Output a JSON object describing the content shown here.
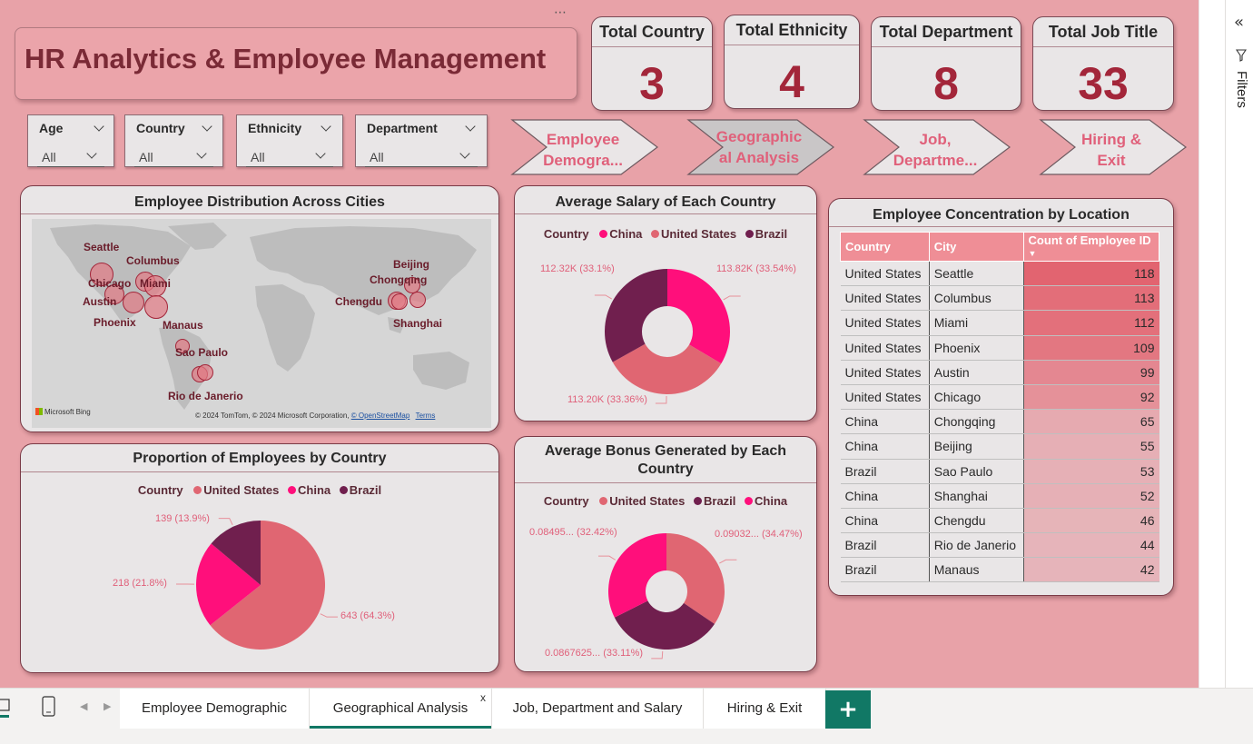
{
  "title": "HR Analytics & Employee Management",
  "more_options": "⋯",
  "kpis": [
    {
      "label": "Total Country",
      "value": "3"
    },
    {
      "label": "Total Ethnicity",
      "value": "4"
    },
    {
      "label": "Total Department",
      "value": "8"
    },
    {
      "label": "Total Job Title",
      "value": "33"
    }
  ],
  "slicers": [
    {
      "label": "Age",
      "value": "All"
    },
    {
      "label": "Country",
      "value": "All"
    },
    {
      "label": "Ethnicity",
      "value": "All"
    },
    {
      "label": "Department",
      "value": "All"
    }
  ],
  "nav_buttons": [
    {
      "line1": "Employee",
      "line2": "Demogra..."
    },
    {
      "line1": "Geographic",
      "line2": "al Analysis"
    },
    {
      "line1": "Job,",
      "line2": "Departme..."
    },
    {
      "line1": "Hiring &",
      "line2": "Exit"
    }
  ],
  "map": {
    "title": "Employee Distribution Across Cities",
    "cities": [
      "Seattle",
      "Columbus",
      "Chicago",
      "Miami",
      "Austin",
      "Phoenix",
      "Manaus",
      "Sao Paulo",
      "Rio de Janerio",
      "Beijing",
      "Chongqing",
      "Chengdu",
      "Shanghai"
    ],
    "provider": "Microsoft Bing",
    "attribution": "© 2024 TomTom, © 2024 Microsoft Corporation,",
    "osm": "© OpenStreetMap",
    "terms": "Terms"
  },
  "salary_chart": {
    "title": "Average Salary of Each Country",
    "legend_title": "Country",
    "labels": [
      "113.82K (33.54%)",
      "113.20K (33.36%)",
      "112.32K (33.1%)"
    ]
  },
  "bonus_chart": {
    "title": "Average Bonus Generated by Each Country",
    "legend_title": "Country",
    "labels": [
      "0.09032... (34.47%)",
      "0.0867625... (33.11%)",
      "0.08495... (32.42%)"
    ]
  },
  "proportion_chart": {
    "title": "Proportion of Employees by Country",
    "legend_title": "Country",
    "labels": [
      "643 (64.3%)",
      "218 (21.8%)",
      "139 (13.9%)"
    ]
  },
  "table": {
    "title": "Employee Concentration by Location",
    "headers": [
      "Country",
      "City",
      "Count of Employee ID"
    ],
    "sort_indicator": "▼"
  },
  "chart_data": [
    {
      "type": "pie",
      "title": "Average Salary of Each Country",
      "legend_title": "Country",
      "donut": true,
      "categories": [
        "China",
        "United States",
        "Brazil"
      ],
      "values": [
        113.82,
        113.2,
        112.32
      ],
      "value_unit": "K",
      "percents": [
        33.54,
        33.36,
        33.1
      ],
      "colors": [
        "#ff0f7b",
        "#e06672",
        "#701f4e"
      ]
    },
    {
      "type": "pie",
      "title": "Average Bonus Generated by Each Country",
      "legend_title": "Country",
      "donut": true,
      "categories": [
        "United States",
        "Brazil",
        "China"
      ],
      "values": [
        0.09032,
        0.0867625,
        0.08495
      ],
      "percents": [
        34.47,
        33.11,
        32.42
      ],
      "colors": [
        "#e06672",
        "#701f4e",
        "#ff0f7b"
      ]
    },
    {
      "type": "pie",
      "title": "Proportion of Employees by Country",
      "legend_title": "Country",
      "donut": false,
      "categories": [
        "United States",
        "China",
        "Brazil"
      ],
      "values": [
        643,
        218,
        139
      ],
      "percents": [
        64.3,
        21.8,
        13.9
      ],
      "colors": [
        "#e06672",
        "#ff0f7b",
        "#701f4e"
      ]
    },
    {
      "type": "table",
      "title": "Employee Concentration by Location",
      "columns": [
        "Country",
        "City",
        "Count of Employee ID"
      ],
      "rows": [
        [
          "United States",
          "Seattle",
          118
        ],
        [
          "United States",
          "Columbus",
          113
        ],
        [
          "United States",
          "Miami",
          112
        ],
        [
          "United States",
          "Phoenix",
          109
        ],
        [
          "United States",
          "Austin",
          99
        ],
        [
          "United States",
          "Chicago",
          92
        ],
        [
          "China",
          "Chongqing",
          65
        ],
        [
          "China",
          "Beijing",
          55
        ],
        [
          "Brazil",
          "Sao Paulo",
          53
        ],
        [
          "China",
          "Shanghai",
          52
        ],
        [
          "China",
          "Chengdu",
          46
        ],
        [
          "Brazil",
          "Rio de Janerio",
          44
        ],
        [
          "Brazil",
          "Manaus",
          42
        ]
      ]
    }
  ],
  "filters_pane": {
    "label": "Filters",
    "collapse_icon": "«"
  },
  "page_tabs": [
    {
      "label": "Employee Demographic"
    },
    {
      "label": "Geographical Analysis"
    },
    {
      "label": "Job, Department and Salary"
    },
    {
      "label": "Hiring & Exit"
    }
  ],
  "close_tab": "x",
  "add_page": "+"
}
